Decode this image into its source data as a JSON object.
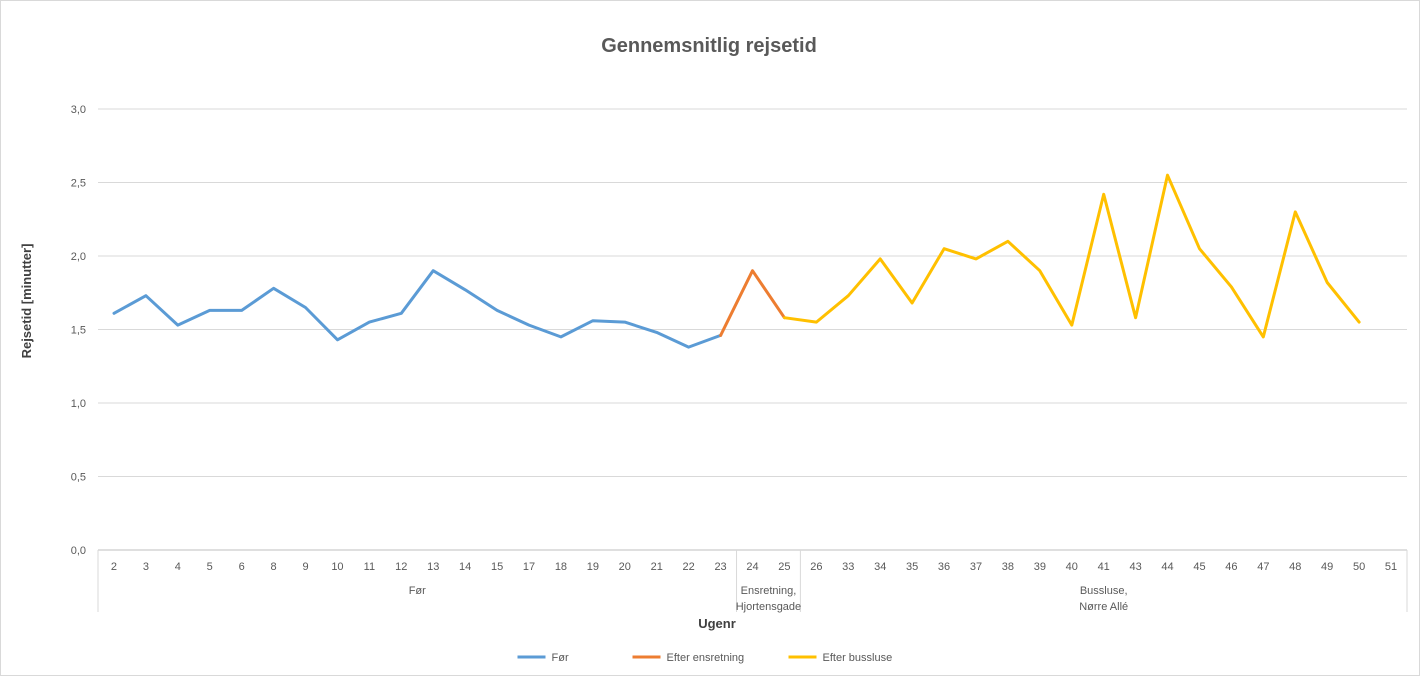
{
  "chart_data": {
    "type": "line",
    "title": "Gennemsnitlig rejsetid",
    "xlabel": "Ugenr",
    "ylabel": "Rejsetid [minutter]",
    "ylim": [
      0,
      3
    ],
    "yticks": [
      "0,0",
      "0,5",
      "1,0",
      "1,5",
      "2,0",
      "2,5",
      "3,0"
    ],
    "grid": true,
    "legend_position": "bottom",
    "categories": [
      "2",
      "3",
      "4",
      "5",
      "6",
      "8",
      "9",
      "10",
      "11",
      "12",
      "13",
      "14",
      "15",
      "17",
      "18",
      "19",
      "20",
      "21",
      "22",
      "23",
      "24",
      "25",
      "26",
      "33",
      "34",
      "35",
      "36",
      "37",
      "38",
      "39",
      "40",
      "41",
      "43",
      "44",
      "45",
      "46",
      "47",
      "48",
      "49",
      "50",
      "51"
    ],
    "groups": [
      {
        "label_lines": [
          "Før"
        ],
        "count": 20
      },
      {
        "label_lines": [
          "Ensretning,",
          "Hjortensgade"
        ],
        "count": 2
      },
      {
        "label_lines": [
          "Bussluse,",
          "Nørre Allé"
        ],
        "count": 19
      }
    ],
    "series": [
      {
        "name": "Før",
        "color": "#5b9bd5",
        "points": [
          [
            "2",
            1.61
          ],
          [
            "3",
            1.73
          ],
          [
            "4",
            1.53
          ],
          [
            "5",
            1.63
          ],
          [
            "6",
            1.63
          ],
          [
            "8",
            1.78
          ],
          [
            "9",
            1.65
          ],
          [
            "10",
            1.43
          ],
          [
            "11",
            1.55
          ],
          [
            "12",
            1.61
          ],
          [
            "13",
            1.9
          ],
          [
            "14",
            1.77
          ],
          [
            "15",
            1.63
          ],
          [
            "17",
            1.53
          ],
          [
            "18",
            1.45
          ],
          [
            "19",
            1.56
          ],
          [
            "20",
            1.55
          ],
          [
            "21",
            1.48
          ],
          [
            "22",
            1.38
          ],
          [
            "23",
            1.46
          ]
        ]
      },
      {
        "name": "Efter ensretning",
        "color": "#ed7d31",
        "points": [
          [
            "23",
            1.46
          ],
          [
            "24",
            1.9
          ],
          [
            "25",
            1.58
          ]
        ]
      },
      {
        "name": "Efter bussluse",
        "color": "#ffc000",
        "points": [
          [
            "25",
            1.58
          ],
          [
            "26",
            1.55
          ],
          [
            "33",
            1.73
          ],
          [
            "34",
            1.98
          ],
          [
            "35",
            1.68
          ],
          [
            "36",
            2.05
          ],
          [
            "37",
            1.98
          ],
          [
            "38",
            2.1
          ],
          [
            "39",
            1.9
          ],
          [
            "40",
            1.53
          ],
          [
            "41",
            2.42
          ],
          [
            "43",
            1.58
          ],
          [
            "44",
            2.55
          ],
          [
            "45",
            2.05
          ],
          [
            "46",
            1.79
          ],
          [
            "47",
            1.45
          ],
          [
            "48",
            2.3
          ],
          [
            "49",
            1.82
          ],
          [
            "50",
            1.55
          ]
        ]
      }
    ]
  }
}
